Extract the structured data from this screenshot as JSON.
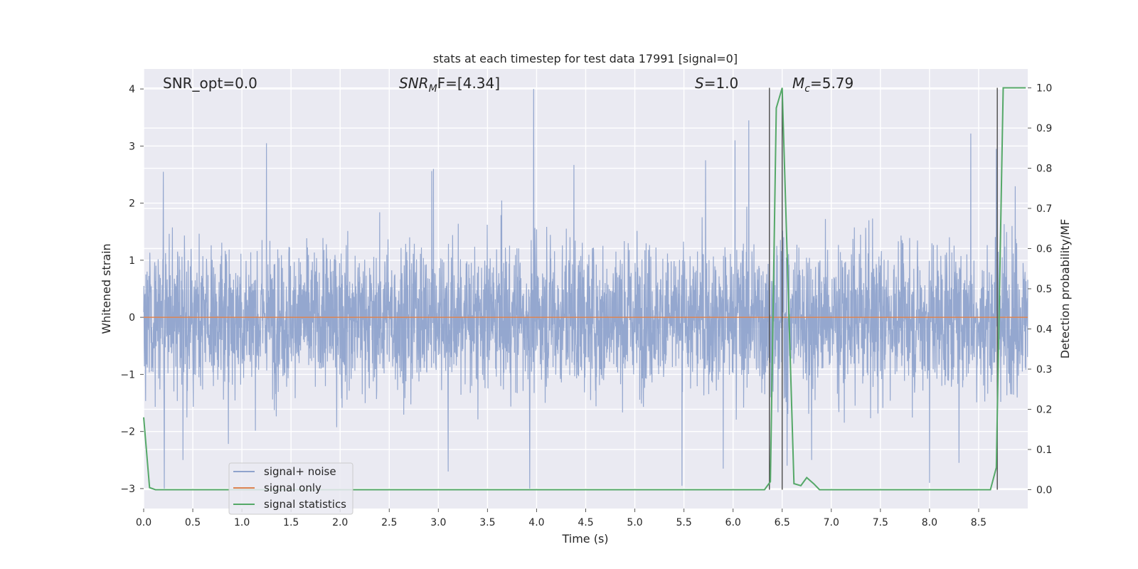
{
  "chart_data": {
    "type": "line",
    "title": "stats at each timestep for test data 17991 [signal=0]",
    "xlabel": "Time (s)",
    "ylabel": "Whitened strain",
    "y2label": "Detection probability/MF",
    "xlim": [
      0,
      9
    ],
    "ylim": [
      -3.35,
      4.35
    ],
    "y2lim": [
      -0.047,
      1.047
    ],
    "xticks": [
      0.0,
      0.5,
      1.0,
      1.5,
      2.0,
      2.5,
      3.0,
      3.5,
      4.0,
      4.5,
      5.0,
      5.5,
      6.0,
      6.5,
      7.0,
      7.5,
      8.0,
      8.5
    ],
    "xtick_labels": [
      "0.0",
      "0.5",
      "1.0",
      "1.5",
      "2.0",
      "2.5",
      "3.0",
      "3.5",
      "4.0",
      "4.5",
      "5.0",
      "5.5",
      "6.0",
      "6.5",
      "7.0",
      "7.5",
      "8.0",
      "8.5"
    ],
    "yticks": [
      -3,
      -2,
      -1,
      0,
      1,
      2,
      3,
      4
    ],
    "ytick_labels": [
      "−3",
      "−2",
      "−1",
      "0",
      "1",
      "2",
      "3",
      "4"
    ],
    "y2ticks": [
      0.0,
      0.1,
      0.2,
      0.3,
      0.4,
      0.5,
      0.6,
      0.7,
      0.8,
      0.9,
      1.0
    ],
    "y2tick_labels": [
      "0.0",
      "0.1",
      "0.2",
      "0.3",
      "0.4",
      "0.5",
      "0.6",
      "0.7",
      "0.8",
      "0.9",
      "1.0"
    ],
    "grid": true,
    "legend_position": "lower-left",
    "annotations": {
      "snr_opt": "SNR_opt=0.0",
      "snr_mf_main": "SNR",
      "snr_mf_sub": "M",
      "snr_mf_rest": "F=[4.34]",
      "s_main": "S",
      "s_rest": "=1.0",
      "mc_main": "M",
      "mc_sub": "c",
      "mc_rest": "=5.79"
    },
    "series": [
      {
        "name": "signal+ noise",
        "color": "#8fa3cc",
        "kind": "noise",
        "amplitude_range": [
          -3.0,
          4.0
        ],
        "peaks": [
          [
            1.25,
            3.05
          ],
          [
            3.97,
            4.0
          ],
          [
            6.16,
            3.45
          ],
          [
            8.42,
            3.22
          ],
          [
            0.2,
            2.55
          ],
          [
            2.95,
            2.6
          ],
          [
            4.38,
            2.67
          ],
          [
            5.72,
            2.75
          ],
          [
            6.02,
            3.1
          ],
          [
            8.68,
            2.95
          ]
        ],
        "troughs": [
          [
            0.21,
            -3.05
          ],
          [
            3.93,
            -3.0
          ],
          [
            5.48,
            -2.95
          ],
          [
            8.0,
            -2.9
          ],
          [
            3.1,
            -2.7
          ],
          [
            6.55,
            -2.6
          ],
          [
            6.8,
            -2.5
          ],
          [
            8.3,
            -2.55
          ],
          [
            5.9,
            -2.65
          ],
          [
            0.4,
            -2.5
          ]
        ]
      },
      {
        "name": "signal only",
        "color": "#dd8452",
        "axis": "left",
        "x": [
          0,
          9
        ],
        "y": [
          0,
          0
        ]
      },
      {
        "name": "signal statistics",
        "color": "#55a868",
        "axis": "right",
        "x": [
          0.0,
          0.06,
          0.12,
          6.32,
          6.38,
          6.44,
          6.5,
          6.62,
          6.69,
          6.75,
          6.82,
          6.88,
          8.62,
          8.68,
          8.75,
          8.98
        ],
        "y": [
          0.18,
          0.005,
          0.0,
          0.0,
          0.02,
          0.95,
          1.0,
          0.015,
          0.01,
          0.03,
          0.015,
          0.0,
          0.0,
          0.055,
          1.0,
          1.0
        ]
      }
    ],
    "vlines": [
      6.37,
      6.5,
      8.69
    ],
    "vline_color": "#555555"
  }
}
